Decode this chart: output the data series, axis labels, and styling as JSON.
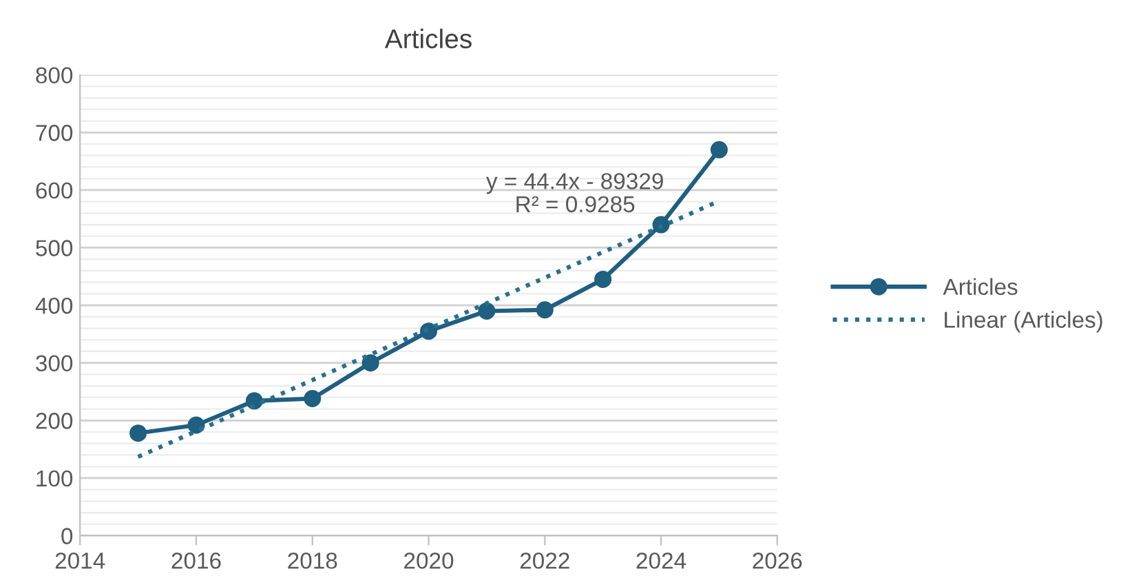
{
  "chart_data": {
    "type": "line",
    "title": "Articles",
    "x": [
      2015,
      2016,
      2017,
      2018,
      2019,
      2020,
      2021,
      2022,
      2023,
      2024,
      2025
    ],
    "series": [
      {
        "name": "Articles",
        "color": "#1f5f80",
        "values": [
          178,
          192,
          234,
          238,
          300,
          355,
          390,
          392,
          445,
          540,
          670
        ],
        "marker": "circle",
        "line_style": "solid"
      },
      {
        "name": "Linear (Articles)",
        "color": "#2a6f8f",
        "x": [
          2015,
          2025
        ],
        "values": [
          137,
          581
        ],
        "marker": "none",
        "line_style": "dotted"
      }
    ],
    "annotations": [
      "y = 44.4x - 89329",
      "R² = 0.9285"
    ],
    "xlim": [
      2014,
      2026
    ],
    "xticks": [
      2014,
      2016,
      2018,
      2020,
      2022,
      2024,
      2026
    ],
    "ylim": [
      0,
      800
    ],
    "yticks": [
      0,
      100,
      200,
      300,
      400,
      500,
      600,
      700,
      800
    ],
    "grid": "y",
    "legend": "right"
  }
}
